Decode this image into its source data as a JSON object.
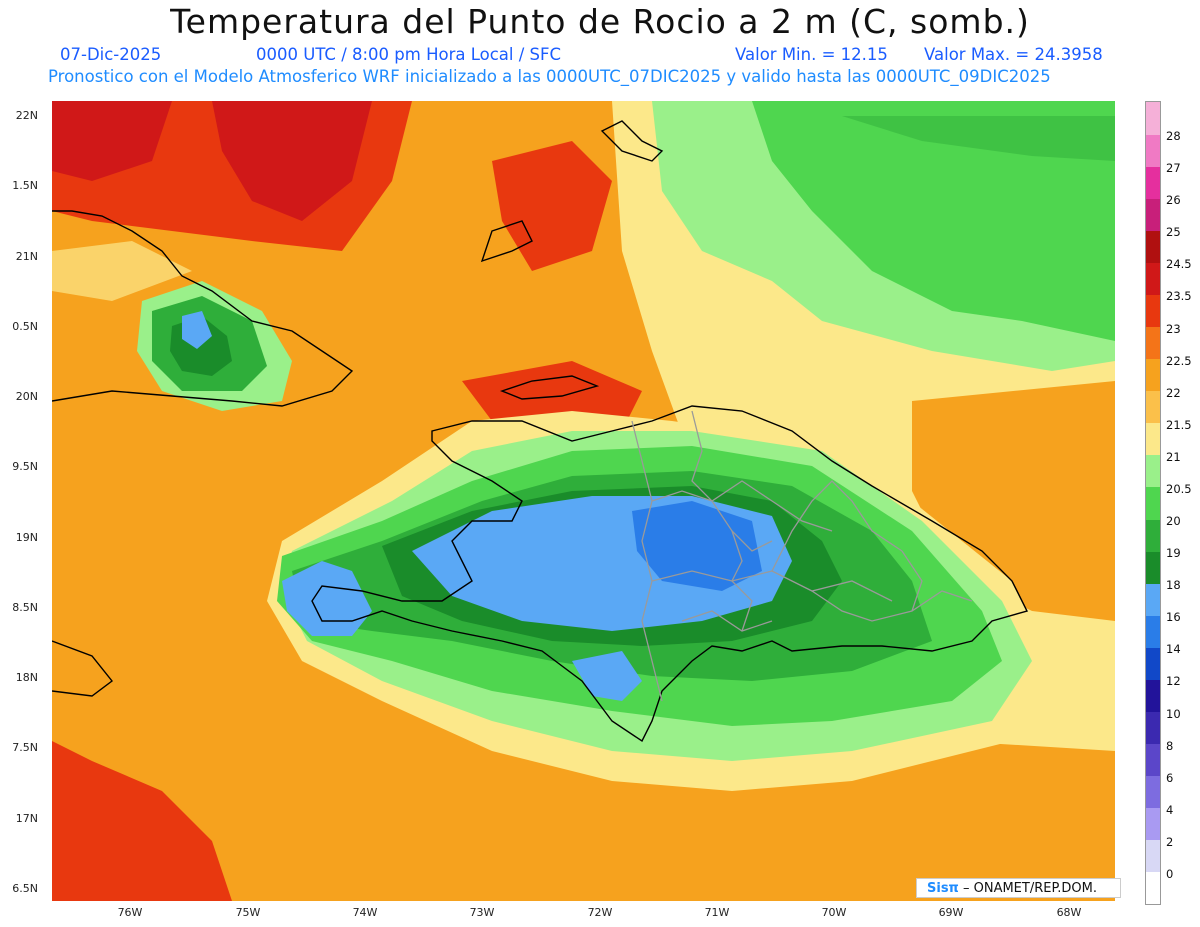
{
  "header": {
    "title": "Temperatura del Punto de Rocio a 2 m (C, somb.)",
    "date": "07-Dic-2025",
    "time": "0000 UTC / 8:00 pm Hora Local / SFC",
    "min": "Valor Min. = 12.15",
    "max": "Valor Max. = 24.3958",
    "subtitle": "Pronostico con el Modelo Atmosferico WRF inicializado a las 0000UTC_07DIC2025 y valido hasta las  0000UTC_09DIC2025"
  },
  "map_data": {
    "variable": "2 m dew point temperature",
    "unit": "C",
    "lat_range": [
      16.5,
      22
    ],
    "lon_range": [
      -76.5,
      -67.5
    ],
    "min_value": 12.15,
    "max_value": 24.3958,
    "y_labels": [
      "22N",
      "1.5N",
      "21N",
      "0.5N",
      "20N",
      "9.5N",
      "19N",
      "8.5N",
      "18N",
      "7.5N",
      "17N",
      "6.5N"
    ],
    "x_labels": [
      "76W",
      "75W",
      "74W",
      "73W",
      "72W",
      "71W",
      "70W",
      "69W",
      "68W"
    ]
  },
  "legend": {
    "levels": [
      "0",
      "2",
      "4",
      "6",
      "8",
      "10",
      "12",
      "14",
      "16",
      "18",
      "19",
      "20",
      "20.5",
      "21",
      "21.5",
      "22",
      "22.5",
      "23",
      "23.5",
      "24.5",
      "25",
      "26",
      "27",
      "28"
    ],
    "colors": [
      "#ffffff",
      "#d8d8f5",
      "#a99af2",
      "#7d6ce0",
      "#5b46c9",
      "#3b29b0",
      "#22139a",
      "#1148c8",
      "#2a7de8",
      "#5aa8f5",
      "#1a8c2a",
      "#2fae3a",
      "#4fd64f",
      "#9af08a",
      "#fce88a",
      "#fbc04a",
      "#f6a21e",
      "#f47418",
      "#e8380f",
      "#d01818",
      "#b01010",
      "#c81f7a",
      "#e52f9e",
      "#f07ac4",
      "#f5b0d8"
    ]
  },
  "credit": {
    "logo": "Sisπ",
    "text": "– ONAMET/REP.DOM."
  }
}
